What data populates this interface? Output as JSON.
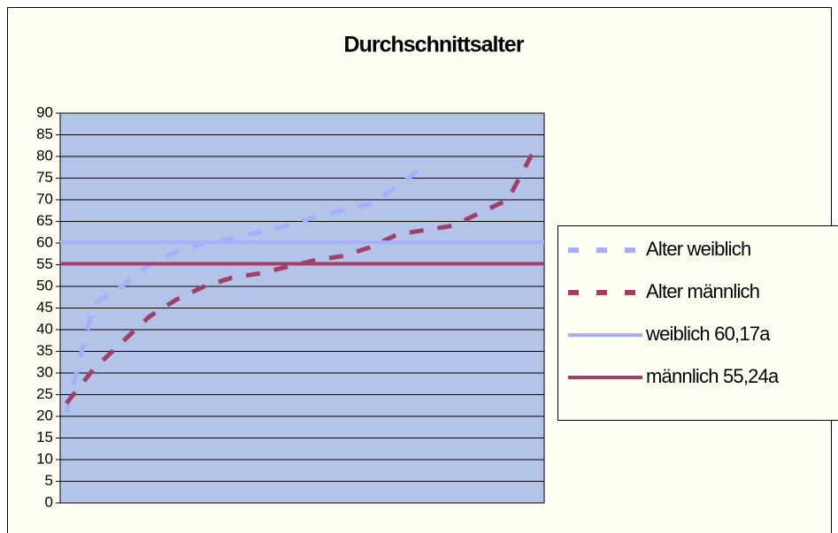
{
  "chart_data": {
    "type": "line",
    "title": "Durchschnittsalter",
    "categories": [
      null,
      null,
      null,
      null,
      null,
      null,
      null,
      null,
      null,
      null,
      null,
      null,
      null,
      null,
      null,
      null,
      null,
      null
    ],
    "series": [
      {
        "name": "Alter weiblich",
        "color": "#a4b0fa",
        "style": "dashed",
        "values": [
          21,
          46,
          50,
          55,
          58,
          60,
          61,
          62.5,
          64,
          66,
          67.5,
          69,
          73,
          78,
          null,
          null,
          null,
          null
        ]
      },
      {
        "name": "Alter männlich",
        "color": "#a0406a",
        "style": "dashed",
        "values": [
          23,
          31,
          37,
          43,
          47,
          50,
          52,
          53,
          54.5,
          56,
          57,
          59,
          62,
          63,
          64,
          67,
          70,
          82
        ]
      }
    ],
    "reference_lines": [
      {
        "name": "weiblich 60,17a",
        "color": "#a4b0fa",
        "value": 60.17
      },
      {
        "name": "männlich 55,24a",
        "color": "#a0406a",
        "value": 55.24
      }
    ],
    "ylim": [
      0,
      90
    ],
    "yticks": [
      0,
      5,
      10,
      15,
      20,
      25,
      30,
      35,
      40,
      45,
      50,
      55,
      60,
      65,
      70,
      75,
      80,
      85,
      90
    ],
    "grid": true,
    "legend": "right"
  }
}
